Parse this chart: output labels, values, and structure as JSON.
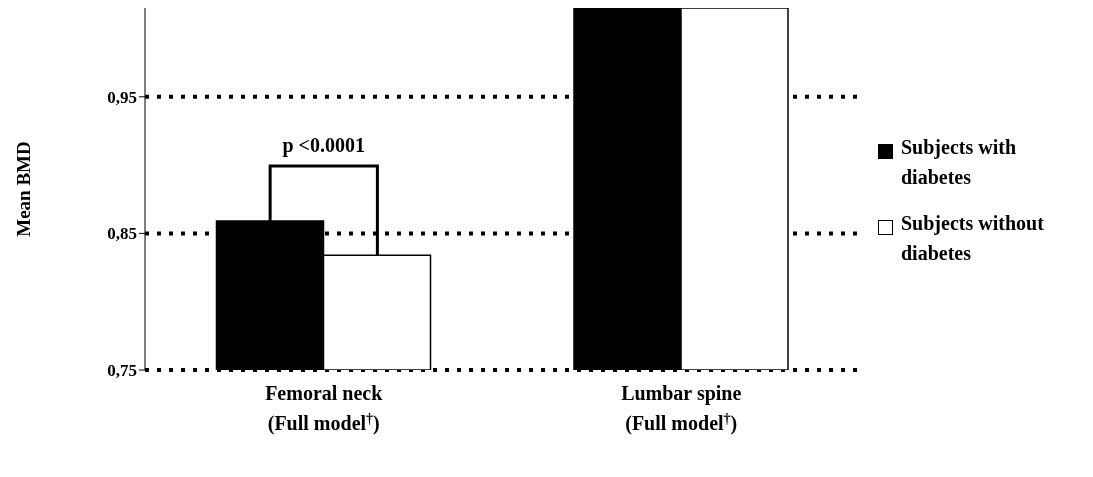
{
  "chart_data": {
    "type": "bar",
    "ylabel": "Mean BMD",
    "categories": [
      "Femoral neck\n(Full model$^{†}$)",
      "Lumbar spine\n(Full model$^{†}$)"
    ],
    "series": [
      {
        "name": "Subjects with diabetes",
        "color": "#000000",
        "values": [
          0.859,
          1.015
        ]
      },
      {
        "name": "Subjects without diabetes",
        "color": "#ffffff",
        "values": [
          0.834,
          1.015
        ]
      }
    ],
    "ylim": [
      0.75,
      1.015
    ],
    "yticks": [
      {
        "value": 0.75,
        "label": "0,75"
      },
      {
        "value": 0.85,
        "label": "0,85"
      },
      {
        "value": 0.95,
        "label": "0,95"
      }
    ],
    "grid": "y",
    "legend": "right",
    "annotations": [
      "p <0.0001"
    ]
  }
}
